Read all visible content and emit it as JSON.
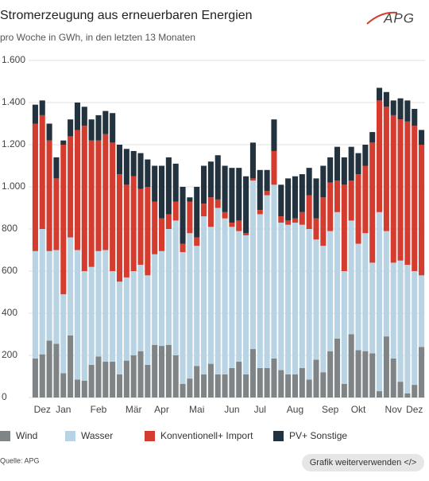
{
  "chart_data": {
    "type": "stacked_bar",
    "title": "Stromerzeugung aus erneuerbaren Energien",
    "subtitle": "pro Woche in GWh, in den letzten 13 Monaten",
    "source": "Quelle: APG",
    "logo": "APG",
    "button": "Grafik weiterverwenden </>",
    "categories": [
      null,
      "Dez",
      null,
      null,
      "Jan",
      null,
      null,
      null,
      null,
      "Feb",
      null,
      null,
      null,
      null,
      "Mär",
      null,
      null,
      null,
      "Apr",
      null,
      null,
      null,
      null,
      "Mai",
      null,
      null,
      null,
      null,
      "Jun",
      null,
      null,
      null,
      "Jul",
      null,
      null,
      null,
      null,
      "Aug",
      null,
      null,
      null,
      null,
      "Sep",
      null,
      null,
      null,
      "Okt",
      null,
      null,
      null,
      null,
      "Nov",
      null,
      null,
      "Dez",
      null
    ],
    "series": [
      {
        "name": "Wind",
        "color": "#7f8487",
        "values": [
          185,
          205,
          270,
          255,
          115,
          295,
          85,
          80,
          155,
          195,
          170,
          170,
          110,
          175,
          200,
          220,
          155,
          250,
          245,
          250,
          200,
          65,
          90,
          150,
          110,
          160,
          110,
          110,
          140,
          170,
          110,
          230,
          140,
          140,
          185,
          130,
          110,
          110,
          140,
          85,
          180,
          120,
          220,
          280,
          65,
          300,
          225,
          220,
          210,
          30,
          290,
          185,
          75,
          20,
          60,
          240
        ]
      },
      {
        "name": "Wasser",
        "color": "#b8d3e3",
        "values": [
          510,
          595,
          425,
          445,
          375,
          465,
          615,
          520,
          465,
          500,
          530,
          430,
          440,
          395,
          400,
          410,
          425,
          430,
          450,
          550,
          640,
          625,
          690,
          570,
          750,
          650,
          790,
          740,
          670,
          620,
          660,
          800,
          730,
          820,
          825,
          700,
          710,
          720,
          680,
          715,
          570,
          600,
          570,
          600,
          535,
          540,
          505,
          560,
          430,
          850,
          500,
          455,
          575,
          610,
          540,
          340
        ]
      },
      {
        "name": "Konventionell+ Import",
        "color": "#d33c2e",
        "values": [
          605,
          540,
          525,
          340,
          710,
          480,
          570,
          690,
          600,
          525,
          550,
          610,
          510,
          440,
          450,
          360,
          420,
          250,
          155,
          70,
          90,
          40,
          150,
          40,
          60,
          140,
          40,
          30,
          20,
          50,
          10,
          10,
          20,
          20,
          160,
          30,
          20,
          20,
          60,
          160,
          100,
          230,
          230,
          150,
          410,
          190,
          330,
          320,
          570,
          530,
          590,
          700,
          670,
          680,
          690,
          620
        ]
      },
      {
        "name": "PV+ Sonstige",
        "color": "#22323f",
        "values": [
          90,
          70,
          80,
          100,
          20,
          80,
          130,
          90,
          100,
          120,
          110,
          140,
          140,
          170,
          120,
          170,
          130,
          170,
          250,
          270,
          180,
          270,
          20,
          240,
          180,
          170,
          210,
          220,
          260,
          250,
          270,
          170,
          190,
          100,
          150,
          150,
          200,
          200,
          180,
          130,
          190,
          150,
          120,
          160,
          130,
          160,
          100,
          100,
          50,
          60,
          70,
          70,
          100,
          100,
          80,
          70
        ]
      }
    ],
    "ylim": [
      0,
      1600
    ],
    "yticks": [
      0,
      200,
      400,
      600,
      800,
      {
        "value": 1000,
        "label": "1.000"
      },
      {
        "value": 1200,
        "label": "1.200"
      },
      {
        "value": 1400,
        "label": "1.400"
      },
      {
        "value": 1600,
        "label": "1.600"
      }
    ],
    "grid": true,
    "legend": "bottom"
  }
}
